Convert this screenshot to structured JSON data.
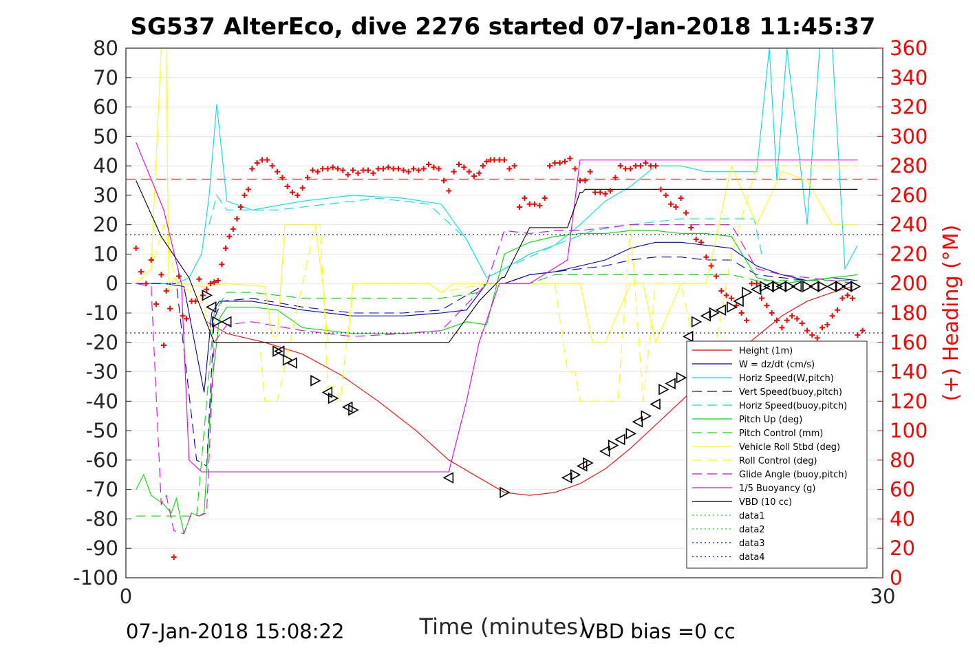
{
  "footer": {
    "start_time": "07-Jan-2018 15:08:22",
    "vbd_bias": "VBD bias =0 cc"
  },
  "chart_data": {
    "type": "line",
    "title": "SG537 AlterEco, dive 2276 started 07-Jan-2018 11:45:37",
    "xlabel": "Time (minutes)",
    "ylabel": "",
    "y2label": "(+) Heading (°M)",
    "xlim": [
      0,
      30
    ],
    "ylim": [
      -100,
      80
    ],
    "y2lim": [
      0,
      360
    ],
    "xticks": [
      0,
      30
    ],
    "yticks": [
      -100,
      -90,
      -80,
      -70,
      -60,
      -50,
      -40,
      -30,
      -20,
      -10,
      0,
      10,
      20,
      30,
      40,
      50,
      60,
      70,
      80
    ],
    "y2ticks": [
      0,
      20,
      40,
      60,
      80,
      100,
      120,
      140,
      160,
      180,
      200,
      220,
      240,
      260,
      280,
      300,
      320,
      340,
      360
    ],
    "grid": true,
    "legend_position": "bottom-right",
    "colors": {
      "heading": "#ff0000",
      "right_axis": "#ff0000"
    },
    "series": [
      {
        "name": "Height (1m)",
        "color": "#ff0000",
        "dash": "solid",
        "x": [
          3.2,
          4.0,
          5.5,
          7.0,
          8.5,
          10.0,
          11.5,
          12.8,
          14.0,
          15.0,
          16.0,
          17.0,
          18.0,
          19.0,
          20.0,
          21.0,
          22.0,
          23.0,
          24.0,
          25.0,
          26.0,
          27.0,
          28.0,
          28.8
        ],
        "y": [
          -13,
          -17,
          -20,
          -24,
          -31,
          -40,
          -50,
          -60,
          -66,
          -71,
          -72,
          -71,
          -68,
          -63,
          -56,
          -48,
          -40,
          -32,
          -25,
          -18,
          -11,
          -6,
          -3,
          -1
        ]
      },
      {
        "name": "W = dz/dt (cm/s)",
        "color": "#0000cc",
        "dash": "solid",
        "x": [
          0.4,
          1.5,
          2.3,
          2.9,
          3.1,
          3.4,
          3.7,
          5.0,
          7.0,
          9.0,
          11.0,
          12.5,
          13.5,
          14.3,
          15.0,
          16.0,
          17.0,
          18.0,
          19.0,
          20.0,
          21.0,
          22.0,
          23.0,
          24.0,
          25.0,
          26.0,
          27.0,
          28.0,
          29.0
        ],
        "y": [
          0,
          0,
          -1,
          -28,
          -37,
          -10,
          -6,
          -6,
          -9,
          -11,
          -11,
          -10,
          -9,
          0,
          0,
          3,
          4,
          6,
          8,
          12,
          14,
          14,
          13,
          12,
          6,
          3,
          1,
          2,
          1
        ]
      },
      {
        "name": "Horiz Speed(W,pitch)",
        "color": "#00e0e0",
        "dash": "solid",
        "x": [
          0.4,
          2.0,
          2.5,
          3.0,
          3.3,
          3.6,
          4.0,
          5.0,
          7.0,
          9.0,
          11.0,
          12.5,
          13.5,
          14.3,
          15.0,
          16.0,
          17.0,
          18.0,
          19.0,
          20.0,
          21.0,
          22.0,
          23.0,
          24.0,
          25.0,
          25.5,
          25.8,
          26.2,
          27.0,
          27.5,
          28.0,
          28.5,
          29.0
        ],
        "y": [
          0,
          0,
          2,
          10,
          30,
          61,
          28,
          25,
          28,
          30,
          29,
          27,
          15,
          2,
          5,
          10,
          13,
          20,
          28,
          33,
          40,
          40,
          38,
          38,
          38,
          80,
          35,
          80,
          20,
          80,
          80,
          5,
          13
        ]
      },
      {
        "name": "Vert Speed(buoy,pitch)",
        "color": "#0000cc",
        "dash": "dashed",
        "x": [
          0.4,
          2.0,
          2.8,
          3.2,
          3.5,
          3.8,
          5.0,
          7.0,
          9.0,
          11.0,
          12.5,
          14.3,
          15.0,
          16.0,
          17.0,
          18.0,
          19.0,
          20.0,
          21.0,
          22.0,
          23.0,
          24.0,
          25.0,
          26.0,
          27.0,
          28.0,
          29.0
        ],
        "y": [
          0,
          0,
          -60,
          -62,
          -12,
          -6,
          -5,
          -8,
          -10,
          -10,
          -9,
          0,
          0,
          3,
          4,
          5,
          6,
          8,
          9,
          9,
          8,
          8,
          3,
          2,
          1,
          1,
          1
        ]
      },
      {
        "name": "Horiz Speed(buoy,pitch)",
        "color": "#00e0e0",
        "dash": "dashed",
        "x": [
          3.3,
          3.6,
          4.0,
          6.0,
          8.0,
          10.0,
          12.0,
          13.5,
          14.3,
          15.0,
          17.0,
          18.5,
          20.0,
          22.0,
          24.0,
          24.9,
          25.2
        ],
        "y": [
          20,
          30,
          25,
          25,
          27,
          29,
          27,
          15,
          2,
          5,
          13,
          18,
          20,
          22,
          22,
          22,
          10
        ]
      },
      {
        "name": "Pitch Up (deg)",
        "color": "#00dd00",
        "dash": "solid",
        "x": [
          0.4,
          0.7,
          1.0,
          1.5,
          1.8,
          2.0,
          2.3,
          2.6,
          2.9,
          3.1,
          3.4,
          3.7,
          4.0,
          5.0,
          6.0,
          7.0,
          9.0,
          11.0,
          12.5,
          13.5,
          14.3,
          15.0,
          16.0,
          17.0,
          18.0,
          19.0,
          20.0,
          21.0,
          22.0,
          23.0,
          24.0,
          25.0,
          26.0,
          27.0,
          28.0,
          29.0
        ],
        "y": [
          -70,
          -65,
          -72,
          -75,
          -78,
          -73,
          -85,
          -78,
          -79,
          -78,
          -35,
          -12,
          -8,
          -8,
          -9,
          -15,
          -17,
          -17,
          -16,
          -13,
          -14,
          10,
          14,
          16,
          17,
          17,
          18,
          18,
          17,
          17,
          16,
          2,
          0,
          1,
          2,
          3
        ]
      },
      {
        "name": "Pitch Control (mm)",
        "color": "#00dd00",
        "dash": "dashed",
        "x": [
          0.4,
          1.5,
          2.0,
          2.8,
          3.0,
          3.5,
          4.0,
          5.0,
          7.0,
          11.0,
          12.5,
          14.0,
          14.3,
          15.0,
          16.0,
          17.0,
          20.0,
          24.0,
          25.0,
          27.0,
          29.0
        ],
        "y": [
          -79,
          -79,
          -79,
          -79,
          -60,
          -10,
          -3,
          -3,
          -5,
          -5,
          -5,
          -3,
          0,
          0,
          0,
          3,
          3,
          3,
          1,
          1,
          1
        ]
      },
      {
        "name": "Vehicle Roll Stbd (deg)",
        "color": "#ffff00",
        "dash": "solid",
        "x": [
          0.4,
          1.0,
          1.4,
          1.6,
          1.7,
          1.9,
          2.1,
          3.0,
          4.0,
          5.5,
          5.8,
          6.0,
          6.3,
          7.5,
          7.8,
          8.0,
          8.8,
          9.0,
          10.0,
          12.0,
          12.5,
          13.0,
          14.0,
          16.0,
          17.0,
          18.0,
          18.5,
          19.0,
          20.0,
          20.5,
          21.0,
          22.0,
          23.0,
          24.0,
          25.0,
          26.0,
          27.0,
          28.0,
          29.0
        ],
        "y": [
          0,
          5,
          80,
          80,
          -3,
          2,
          0,
          -1,
          0,
          -1,
          -18,
          -18,
          20,
          20,
          0,
          -20,
          -20,
          0,
          0,
          0,
          -3,
          0,
          0,
          0,
          0,
          0,
          -20,
          -20,
          0,
          0,
          -20,
          0,
          0,
          40,
          20,
          38,
          35,
          20,
          20
        ]
      },
      {
        "name": "Roll Control (deg)",
        "color": "#ffff00",
        "dash": "dashed",
        "x": [
          0.4,
          1.0,
          1.5,
          2.0,
          3.0,
          3.5,
          4.0,
          5.3,
          5.5,
          6.0,
          7.5,
          7.7,
          8.0,
          8.3,
          8.5,
          9.0,
          12.0,
          12.5,
          14.3,
          15.0,
          17.0,
          17.5,
          17.8,
          18.0,
          19.5,
          20.0,
          20.5,
          21.0,
          22.0,
          23.0,
          24.0,
          25.0,
          26.0,
          29.0
        ],
        "y": [
          0,
          5,
          20,
          0,
          -5,
          -20,
          -20,
          -20,
          -40,
          -40,
          20,
          20,
          -35,
          -35,
          -40,
          0,
          0,
          -3,
          0,
          0,
          0,
          -30,
          -30,
          -40,
          -40,
          20,
          -40,
          0,
          0,
          -40,
          10,
          40,
          40,
          40
        ]
      },
      {
        "name": "Glide Angle (buoy,pitch)",
        "color": "#e000e0",
        "dash": "dashed",
        "x": [
          0.4,
          1.0,
          1.4,
          1.6,
          1.9,
          2.3,
          2.6,
          2.9,
          3.2,
          3.5,
          4.0,
          5.0,
          7.0,
          9.0,
          11.0,
          12.5,
          14.3,
          15.0,
          16.0,
          17.0,
          18.0,
          19.0,
          20.0,
          21.0,
          22.0,
          23.0,
          24.0,
          25.0,
          26.0,
          27.0,
          28.0,
          29.0
        ],
        "y": [
          0,
          -1,
          -75,
          -72,
          -84,
          -85,
          -78,
          -79,
          -78,
          -20,
          -14,
          -13,
          -16,
          -18,
          -17,
          -16,
          0,
          18,
          17,
          18,
          18,
          19,
          20,
          20,
          20,
          20,
          20,
          5,
          3,
          2,
          1,
          0
        ]
      },
      {
        "name": "1/5 Buoyancy (g)",
        "color": "#e000e0",
        "dash": "solid",
        "x": [
          0.4,
          1.5,
          2.2,
          2.5,
          3.0,
          5.0,
          8.0,
          11.0,
          12.5,
          12.8,
          13.5,
          14.0,
          14.8,
          15.3,
          16.0,
          17.5,
          18.0,
          19.0,
          22.0,
          25.0,
          28.0,
          29.0
        ],
        "y": [
          48,
          25,
          0,
          -60,
          -64,
          -64,
          -64,
          -64,
          -64,
          -64,
          -40,
          -20,
          0,
          0,
          0,
          8,
          42,
          42,
          42,
          42,
          42,
          42
        ]
      },
      {
        "name": "VBD (10 cc)",
        "color": "#000000",
        "dash": "solid",
        "x": [
          0.4,
          1.4,
          2.5,
          3.5,
          5.0,
          8.0,
          11.0,
          12.8,
          14.0,
          14.9,
          15.0,
          16.0,
          16.5,
          17.3,
          17.5,
          18.0,
          18.1,
          18.2,
          21.0,
          25.0,
          29.0
        ],
        "y": [
          35,
          16,
          2,
          -20,
          -20,
          -20,
          -20,
          -20,
          -6,
          2,
          2,
          19,
          19,
          19,
          19,
          31,
          31,
          32,
          32,
          32,
          32
        ]
      },
      {
        "name": "data1",
        "color": "#00dd00",
        "dash": "dotted",
        "x": [],
        "y": []
      },
      {
        "name": "data2",
        "color": "#00dd00",
        "dash": "dotted",
        "x": [],
        "y": []
      },
      {
        "name": "data3",
        "color": "#000088",
        "dash": "dotted",
        "x": [
          0,
          30
        ],
        "y": [
          16.6,
          16.6
        ]
      },
      {
        "name": "data4",
        "color": "#000088",
        "dash": "dotted",
        "x": [
          0,
          30
        ],
        "y": [
          -16.8,
          -16.8
        ]
      }
    ],
    "heading_mean": {
      "color": "#ff0000",
      "dash": "dashed",
      "y2": 271
    },
    "heading_points": {
      "color": "#ff0000",
      "marker": "+",
      "x": [
        0.4,
        0.6,
        0.8,
        1.0,
        1.2,
        1.4,
        1.5,
        1.6,
        1.75,
        1.9,
        2.1,
        2.25,
        2.4,
        2.6,
        2.75,
        2.9,
        3.05,
        3.2,
        3.35,
        3.5,
        3.65,
        3.8,
        3.95,
        4.1,
        4.25,
        4.4,
        4.55,
        4.7,
        4.85,
        5.0,
        5.2,
        5.4,
        5.6,
        5.8,
        6.0,
        6.2,
        6.4,
        6.6,
        6.8,
        7.0,
        7.2,
        7.4,
        7.6,
        7.8,
        8.0,
        8.2,
        8.4,
        8.6,
        8.8,
        9.0,
        9.2,
        9.4,
        9.6,
        9.8,
        10.0,
        10.2,
        10.4,
        10.6,
        10.8,
        11.0,
        11.2,
        11.4,
        11.6,
        11.8,
        12.0,
        12.2,
        12.4,
        12.6,
        12.8,
        13.0,
        13.2,
        13.4,
        13.6,
        13.8,
        14.0,
        14.15,
        14.3,
        14.45,
        14.6,
        14.8,
        15.0,
        15.2,
        15.4,
        15.6,
        15.8,
        16.0,
        16.2,
        16.4,
        16.6,
        16.8,
        17.0,
        17.2,
        17.4,
        17.6,
        17.8,
        18.0,
        18.2,
        18.4,
        18.6,
        18.8,
        19.0,
        19.2,
        19.4,
        19.6,
        19.8,
        20.0,
        20.2,
        20.4,
        20.6,
        20.8,
        21.0,
        21.2,
        21.4,
        21.6,
        21.8,
        22.0,
        22.2,
        22.4,
        22.6,
        22.8,
        23.0,
        23.2,
        23.4,
        23.6,
        23.8,
        24.0,
        24.2,
        24.4,
        24.6,
        24.8,
        25.0,
        25.2,
        25.4,
        25.6,
        25.8,
        26.0,
        26.2,
        26.4,
        26.6,
        26.8,
        27.0,
        27.2,
        27.4,
        27.6,
        27.8,
        28.0,
        28.2,
        28.4,
        28.6,
        28.8,
        29.0,
        29.2
      ],
      "y2": [
        224,
        208,
        200,
        216,
        186,
        206,
        158,
        195,
        183,
        14,
        205,
        178,
        176,
        188,
        188,
        203,
        192,
        196,
        200,
        201,
        202,
        213,
        224,
        232,
        237,
        244,
        252,
        260,
        264,
        278,
        282,
        284,
        284,
        280,
        276,
        272,
        266,
        262,
        260,
        265,
        272,
        277,
        276,
        278,
        278,
        279,
        278,
        277,
        274,
        277,
        275,
        277,
        277,
        275,
        278,
        278,
        279,
        278,
        278,
        277,
        276,
        278,
        277,
        278,
        281,
        279,
        278,
        270,
        263,
        276,
        281,
        279,
        276,
        273,
        275,
        280,
        283,
        284,
        284,
        284,
        284,
        278,
        280,
        252,
        258,
        254,
        254,
        253,
        258,
        280,
        282,
        282,
        283,
        285,
        278,
        270,
        270,
        276,
        262,
        262,
        261,
        263,
        272,
        280,
        278,
        278,
        280,
        280,
        282,
        280,
        280,
        264,
        260,
        254,
        252,
        258,
        248,
        238,
        230,
        228,
        218,
        212,
        205,
        195,
        192,
        190,
        185,
        180,
        175,
        200,
        200,
        190,
        185,
        180,
        175,
        170,
        175,
        178,
        176,
        173,
        168,
        165,
        163,
        170,
        172,
        178,
        182,
        190,
        192,
        190,
        165,
        168
      ]
    },
    "depth_markers": {
      "color": "#000000",
      "marker": "triangle",
      "x": [
        3.2,
        3.4,
        3.6,
        4.0,
        6.0,
        6.1,
        6.4,
        6.6,
        7.5,
        8.0,
        8.2,
        8.8,
        9.0,
        12.8,
        15.0,
        17.5,
        17.8,
        18.1,
        18.3,
        19.0,
        19.3,
        19.6,
        20.0,
        20.3,
        20.6,
        21.0,
        21.3,
        21.6,
        22.0,
        22.3,
        22.6,
        23.0,
        23.3,
        23.6,
        24.0,
        24.3,
        24.6,
        25.0,
        25.3,
        25.5,
        25.8,
        26.0,
        26.3,
        26.6,
        27.0,
        27.3,
        27.6,
        28.0,
        28.3,
        28.6,
        28.9
      ],
      "y": [
        -4,
        -8,
        -13,
        -13,
        -23,
        -23,
        -26,
        -27,
        -33,
        -37,
        -39,
        -42,
        -43,
        -66,
        -71,
        -66,
        -65,
        -62,
        -61,
        -57,
        -55,
        -53,
        -51,
        -47,
        -45,
        -41,
        -36,
        -34,
        -32,
        -18,
        -13,
        -11,
        -10,
        -9,
        -8,
        -6,
        -3,
        -2,
        -1,
        -1,
        -1,
        -1,
        -1,
        -1,
        -1,
        -1,
        -1,
        -1,
        -1,
        -1,
        -1
      ]
    }
  }
}
